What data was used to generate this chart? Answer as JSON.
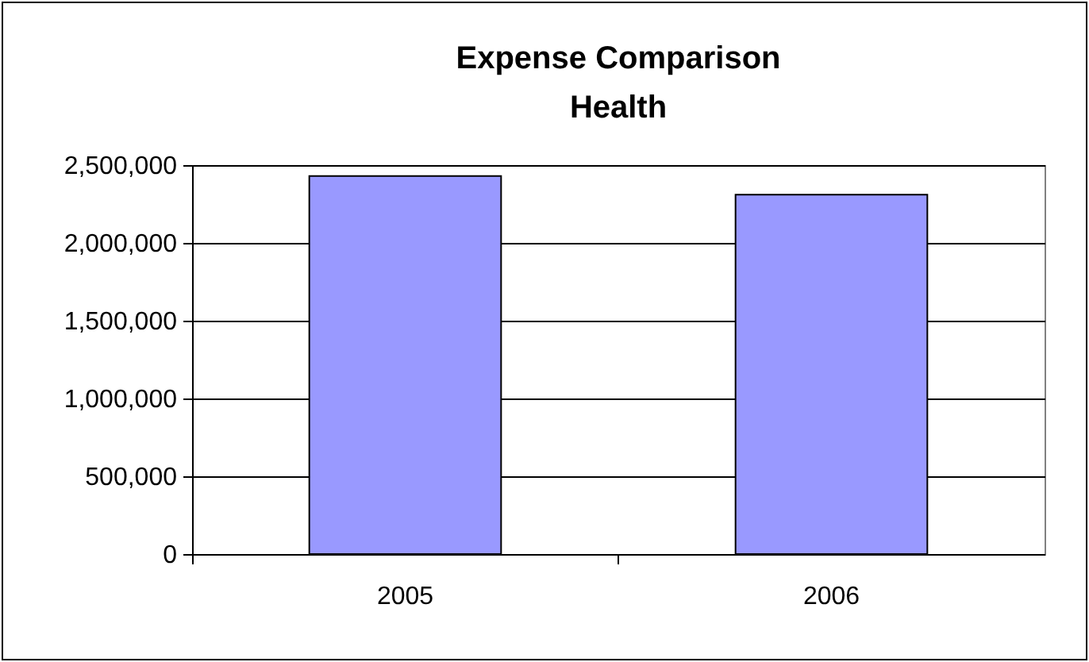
{
  "chart_data": {
    "type": "bar",
    "title": "Expense Comparison\nHealth",
    "categories": [
      "2005",
      "2006"
    ],
    "values": [
      2430000,
      2310000
    ],
    "color": "#9999ff",
    "ylim": [
      0,
      2500000
    ],
    "yticks": [
      0,
      {
        "value": 500000,
        "label": "500,000"
      },
      {
        "value": 1000000,
        "label": "1,000,000"
      },
      {
        "value": 1500000,
        "label": "1,500,000"
      },
      {
        "value": 2000000,
        "label": "2,000,000"
      },
      {
        "value": 2500000,
        "label": "2,500,000"
      }
    ],
    "grid": "y"
  }
}
